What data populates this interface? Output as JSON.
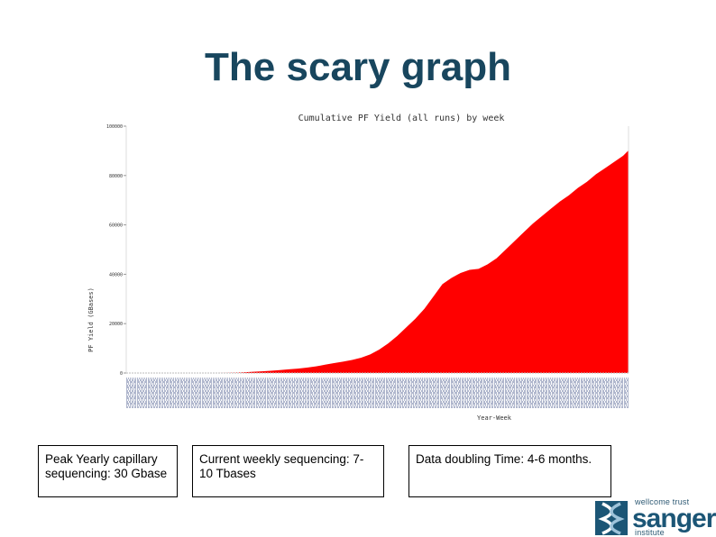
{
  "slide": {
    "title": "The scary graph"
  },
  "notes": [
    "Peak Yearly capillary sequencing: 30 Gbase",
    "Current weekly sequencing: 7-10 Tbases",
    "Data doubling Time: 4-6 months."
  ],
  "logo": {
    "top_text": "wellcome trust",
    "name": "sanger",
    "bottom_text": "institute"
  },
  "chart_data": {
    "type": "area",
    "title": "Cumulative PF Yield (all runs) by week",
    "xlabel": "Year-Week",
    "ylabel": "PF Yield (GBases)",
    "ylim": [
      0,
      100000
    ],
    "yticks": [
      0,
      20000,
      40000,
      60000,
      80000,
      100000
    ],
    "ytick_labels": [
      "0",
      "20000",
      "40000",
      "60000",
      "80000",
      "100000"
    ],
    "grid": false,
    "legend": "none",
    "color": "#ff0000",
    "x": [
      0,
      30,
      40,
      50,
      60,
      70,
      80,
      90,
      100,
      110,
      120,
      130,
      140,
      150,
      160,
      170,
      180,
      190,
      200,
      210,
      215,
      220,
      230,
      240,
      250,
      260,
      270,
      280,
      290,
      300,
      310,
      320,
      330,
      340,
      350,
      360,
      370,
      380,
      390,
      400,
      410,
      420,
      430,
      440,
      450,
      460,
      470,
      480,
      490,
      500,
      510,
      520,
      530,
      540,
      550,
      556
    ],
    "values": [
      0,
      0,
      0,
      0,
      0,
      0,
      0,
      0,
      0,
      50,
      150,
      300,
      500,
      700,
      900,
      1200,
      1500,
      1800,
      2200,
      2700,
      3000,
      3400,
      4000,
      4600,
      5300,
      6200,
      7500,
      9500,
      12000,
      15000,
      18500,
      22000,
      26000,
      31000,
      36000,
      38500,
      40500,
      41800,
      42200,
      44000,
      46500,
      50000,
      53500,
      57000,
      60500,
      63500,
      66500,
      69500,
      72000,
      75000,
      77500,
      80500,
      83000,
      85500,
      88000,
      90200
    ]
  }
}
